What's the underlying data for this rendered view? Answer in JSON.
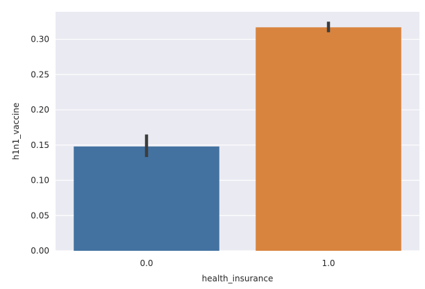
{
  "chart_data": {
    "type": "bar",
    "xlabel": "health_insurance",
    "ylabel": "h1n1_vaccine",
    "categories": [
      "0.0",
      "1.0"
    ],
    "values": [
      0.148,
      0.317
    ],
    "error_bars": [
      [
        0.133,
        0.165
      ],
      [
        0.31,
        0.325
      ]
    ],
    "ylim": [
      0,
      0.339
    ],
    "yticks": [
      0.0,
      0.05,
      0.1,
      0.15,
      0.2,
      0.25,
      0.3
    ],
    "ytick_labels": [
      "0.00",
      "0.05",
      "0.10",
      "0.15",
      "0.20",
      "0.25",
      "0.30"
    ],
    "grid": true,
    "colors": {
      "bars": [
        "#4372a0",
        "#d8843f"
      ],
      "background": "#eaeaf2",
      "grid": "#ffffff",
      "error_bar": "#3d3d3d"
    }
  }
}
